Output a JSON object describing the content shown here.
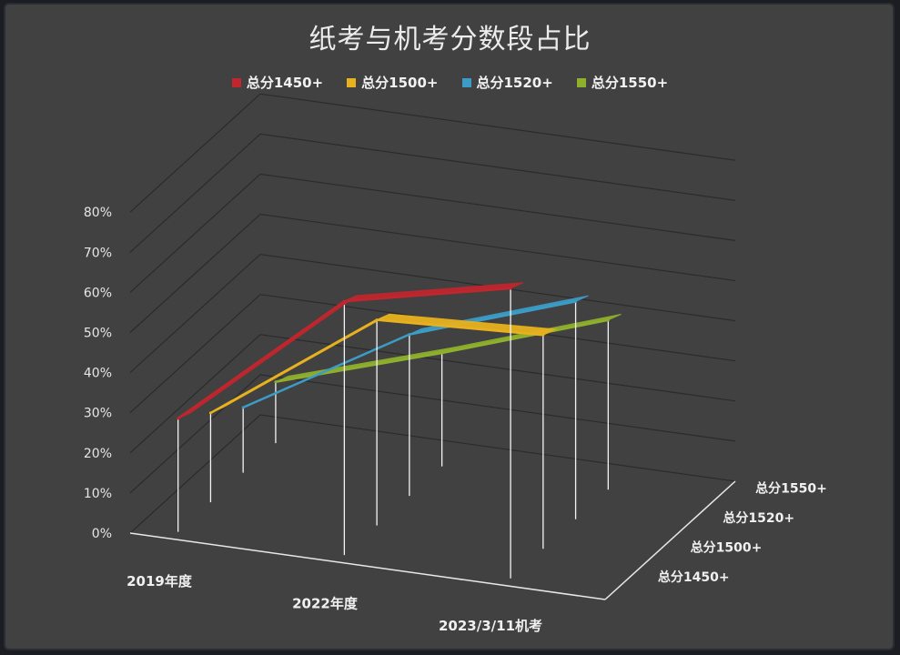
{
  "chart_data": {
    "type": "line",
    "title": "纸考与机考分数段占比",
    "categories": [
      "2019年度",
      "2022年度",
      "2023/3/11机考"
    ],
    "depth_labels": [
      "总分1450+",
      "总分1500+",
      "总分1520+",
      "总分1550+"
    ],
    "y_ticks": [
      "0%",
      "10%",
      "20%",
      "30%",
      "40%",
      "50%",
      "60%",
      "70%",
      "80%"
    ],
    "ylim": [
      0,
      80
    ],
    "grid": true,
    "legend_position": "top",
    "series": [
      {
        "name": "总分1450+",
        "color": "#c0262d",
        "values": [
          26,
          61,
          70
        ]
      },
      {
        "name": "总分1500+",
        "color": "#e8b21f",
        "values": [
          20,
          49,
          51
        ]
      },
      {
        "name": "总分1520+",
        "color": "#3c9cc6",
        "values": [
          14,
          38,
          52
        ]
      },
      {
        "name": "总分1550+",
        "color": "#8fb02c",
        "values": [
          13,
          26,
          40
        ]
      }
    ]
  }
}
